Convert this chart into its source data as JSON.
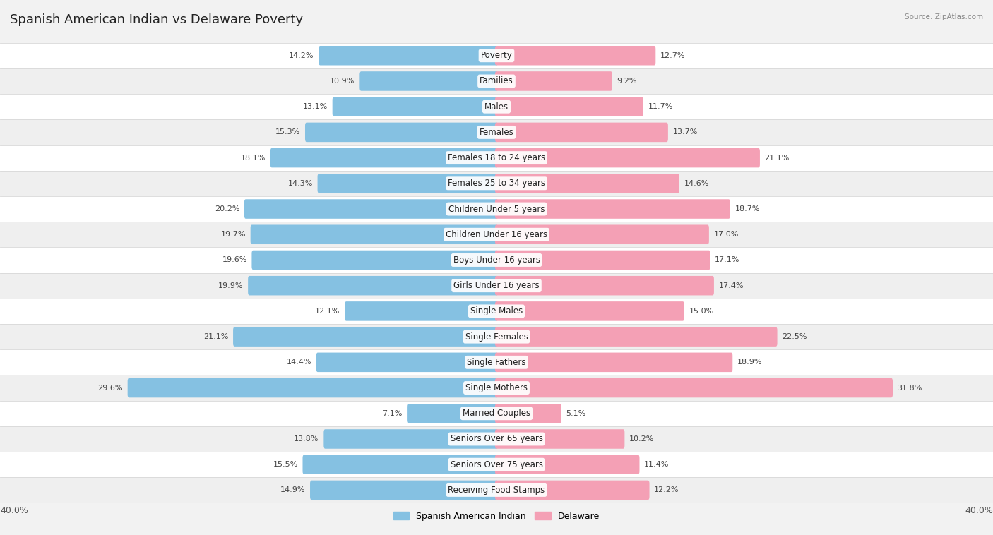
{
  "title": "Spanish American Indian vs Delaware Poverty",
  "source": "Source: ZipAtlas.com",
  "categories": [
    "Poverty",
    "Families",
    "Males",
    "Females",
    "Females 18 to 24 years",
    "Females 25 to 34 years",
    "Children Under 5 years",
    "Children Under 16 years",
    "Boys Under 16 years",
    "Girls Under 16 years",
    "Single Males",
    "Single Females",
    "Single Fathers",
    "Single Mothers",
    "Married Couples",
    "Seniors Over 65 years",
    "Seniors Over 75 years",
    "Receiving Food Stamps"
  ],
  "left_values": [
    14.2,
    10.9,
    13.1,
    15.3,
    18.1,
    14.3,
    20.2,
    19.7,
    19.6,
    19.9,
    12.1,
    21.1,
    14.4,
    29.6,
    7.1,
    13.8,
    15.5,
    14.9
  ],
  "right_values": [
    12.7,
    9.2,
    11.7,
    13.7,
    21.1,
    14.6,
    18.7,
    17.0,
    17.1,
    17.4,
    15.0,
    22.5,
    18.9,
    31.8,
    5.1,
    10.2,
    11.4,
    12.2
  ],
  "left_color": "#85C1E2",
  "right_color": "#F4A0B5",
  "left_label": "Spanish American Indian",
  "right_label": "Delaware",
  "axis_max": 40.0,
  "title_fontsize": 13,
  "label_fontsize": 8.5,
  "value_fontsize": 8.0,
  "axis_fontsize": 9,
  "row_colors": [
    "#ffffff",
    "#efefef"
  ]
}
